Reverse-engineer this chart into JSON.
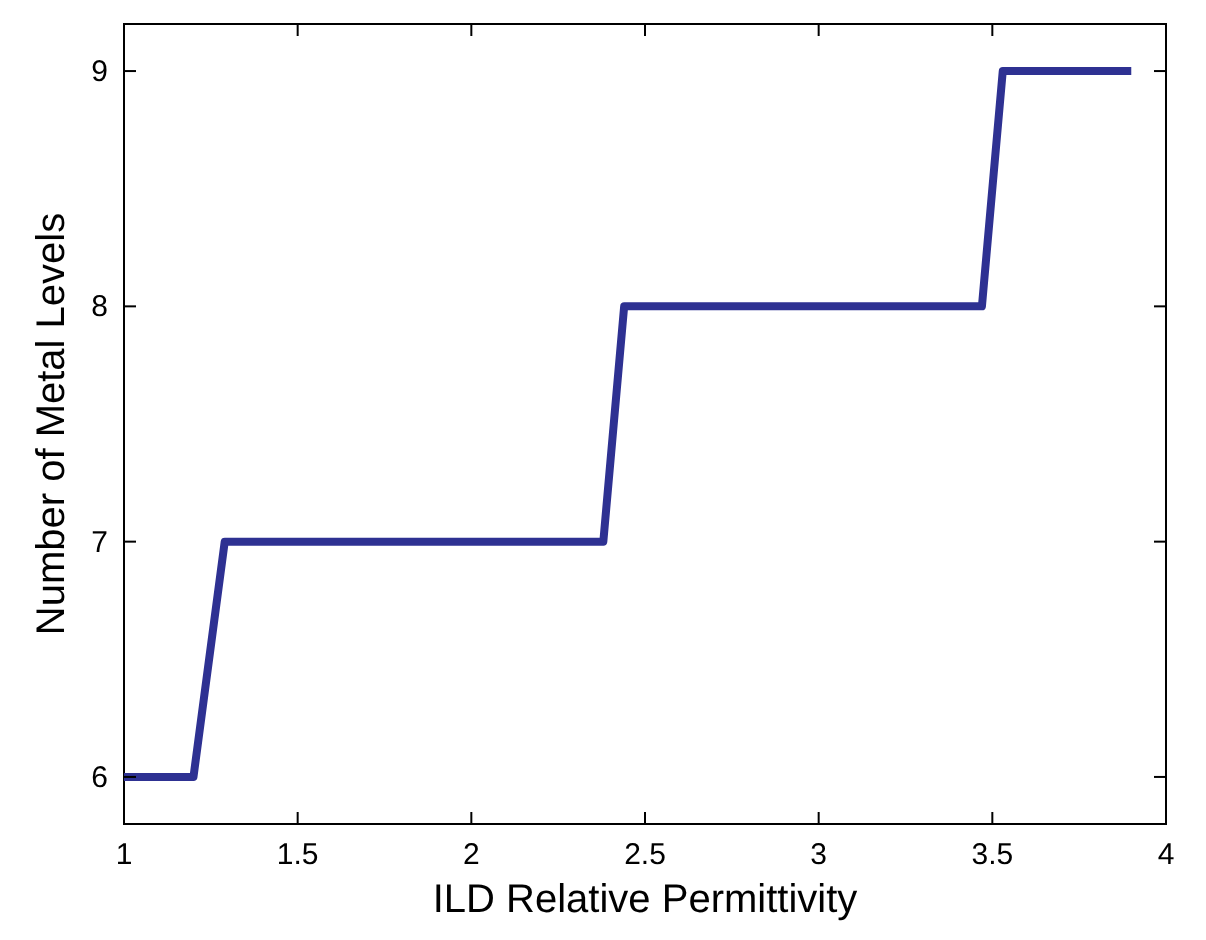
{
  "chart_data": {
    "type": "line",
    "xlabel": "ILD Relative Permittivity",
    "ylabel": "Number of Metal Levels",
    "x": [
      1,
      1.2,
      1.29,
      2.38,
      2.44,
      3.47,
      3.53,
      3.9
    ],
    "series": [
      {
        "color": "#2e3192",
        "values": [
          6,
          6,
          7,
          7,
          8,
          8,
          9,
          9
        ]
      }
    ],
    "xlim": [
      1,
      4
    ],
    "xticks": [
      1,
      1.5,
      2,
      2.5,
      3,
      3.5,
      4
    ],
    "ylim": [
      5.8,
      9.2
    ],
    "yticks": [
      6,
      7,
      8,
      9
    ],
    "grid": false,
    "marker": "none",
    "line_style": "solid"
  }
}
